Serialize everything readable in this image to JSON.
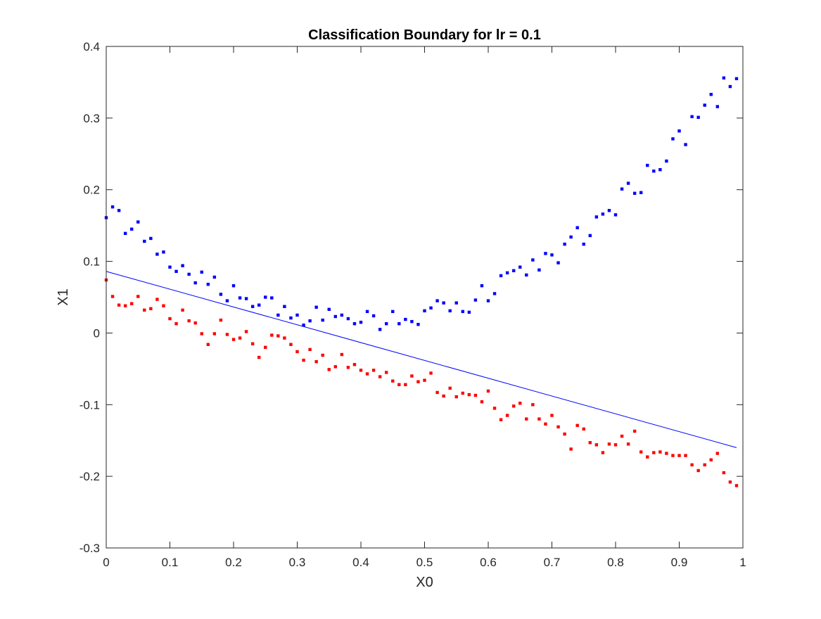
{
  "chart_data": {
    "type": "scatter",
    "title": "Classification Boundary for lr = 0.1",
    "xlabel": "X0",
    "ylabel": "X1",
    "xlim": [
      0,
      1
    ],
    "ylim": [
      -0.3,
      0.4
    ],
    "xticks": [
      "0",
      "0.1",
      "0.2",
      "0.3",
      "0.4",
      "0.5",
      "0.6",
      "0.7",
      "0.8",
      "0.9",
      "1"
    ],
    "yticks": [
      "-0.3",
      "-0.2",
      "-0.1",
      "0",
      "0.1",
      "0.2",
      "0.3",
      "0.4"
    ],
    "xtick_values": [
      0,
      0.1,
      0.2,
      0.3,
      0.4,
      0.5,
      0.6,
      0.7,
      0.8,
      0.9,
      1
    ],
    "ytick_values": [
      -0.3,
      -0.2,
      -0.1,
      0,
      0.1,
      0.2,
      0.3,
      0.4
    ],
    "grid": false,
    "box": true,
    "x": [
      0,
      0.01,
      0.02,
      0.03,
      0.04,
      0.05,
      0.06,
      0.07,
      0.08,
      0.09,
      0.1,
      0.11,
      0.12,
      0.13,
      0.14,
      0.15,
      0.16,
      0.17,
      0.18,
      0.19,
      0.2,
      0.21,
      0.22,
      0.23,
      0.24,
      0.25,
      0.26,
      0.27,
      0.28,
      0.29,
      0.3,
      0.31,
      0.32,
      0.33,
      0.34,
      0.35,
      0.36,
      0.37,
      0.38,
      0.39,
      0.4,
      0.41,
      0.42,
      0.43,
      0.44,
      0.45,
      0.46,
      0.47,
      0.48,
      0.49,
      0.5,
      0.51,
      0.52,
      0.53,
      0.54,
      0.55,
      0.56,
      0.57,
      0.58,
      0.59,
      0.6,
      0.61,
      0.62,
      0.63,
      0.64,
      0.65,
      0.66,
      0.67,
      0.68,
      0.69,
      0.7,
      0.71,
      0.72,
      0.73,
      0.74,
      0.75,
      0.76,
      0.77,
      0.78,
      0.79,
      0.8,
      0.81,
      0.82,
      0.83,
      0.84,
      0.85,
      0.86,
      0.87,
      0.88,
      0.89,
      0.9,
      0.91,
      0.92,
      0.93,
      0.94,
      0.95,
      0.96,
      0.97,
      0.98,
      0.99
    ],
    "series": [
      {
        "color": "#0000ff",
        "marker": "dot",
        "y": [
          0.161,
          0.176,
          0.171,
          0.139,
          0.145,
          0.155,
          0.128,
          0.132,
          0.11,
          0.113,
          0.092,
          0.086,
          0.094,
          0.082,
          0.07,
          0.085,
          0.068,
          0.078,
          0.054,
          0.045,
          0.066,
          0.049,
          0.048,
          0.037,
          0.039,
          0.05,
          0.049,
          0.025,
          0.037,
          0.021,
          0.025,
          0.011,
          0.017,
          0.036,
          0.018,
          0.033,
          0.023,
          0.025,
          0.02,
          0.013,
          0.015,
          0.03,
          0.024,
          0.005,
          0.013,
          0.03,
          0.013,
          0.019,
          0.016,
          0.012,
          0.031,
          0.035,
          0.045,
          0.042,
          0.031,
          0.042,
          0.03,
          0.029,
          0.046,
          0.066,
          0.045,
          0.055,
          0.08,
          0.084,
          0.087,
          0.092,
          0.081,
          0.102,
          0.088,
          0.111,
          0.109,
          0.098,
          0.124,
          0.134,
          0.147,
          0.124,
          0.136,
          0.162,
          0.166,
          0.171,
          0.165,
          0.201,
          0.209,
          0.195,
          0.196,
          0.234,
          0.226,
          0.228,
          0.24,
          0.271,
          0.282,
          0.263,
          0.302,
          0.301,
          0.318,
          0.333,
          0.316,
          0.356,
          0.344,
          0.355
        ]
      },
      {
        "color": "#ff0000",
        "marker": "dot",
        "y": [
          0.074,
          0.051,
          0.039,
          0.038,
          0.041,
          0.051,
          0.032,
          0.034,
          0.047,
          0.038,
          0.02,
          0.013,
          0.032,
          0.017,
          0.014,
          -0.001,
          -0.016,
          -0.001,
          0.018,
          -0.002,
          -0.009,
          -0.007,
          0.002,
          -0.015,
          -0.034,
          -0.02,
          -0.003,
          -0.004,
          -0.007,
          -0.016,
          -0.026,
          -0.038,
          -0.023,
          -0.04,
          -0.031,
          -0.051,
          -0.047,
          -0.03,
          -0.048,
          -0.044,
          -0.052,
          -0.057,
          -0.052,
          -0.061,
          -0.055,
          -0.067,
          -0.072,
          -0.072,
          -0.06,
          -0.068,
          -0.066,
          -0.056,
          -0.083,
          -0.088,
          -0.077,
          -0.089,
          -0.084,
          -0.086,
          -0.087,
          -0.096,
          -0.081,
          -0.105,
          -0.121,
          -0.115,
          -0.102,
          -0.098,
          -0.12,
          -0.1,
          -0.12,
          -0.127,
          -0.115,
          -0.131,
          -0.141,
          -0.162,
          -0.129,
          -0.134,
          -0.153,
          -0.156,
          -0.167,
          -0.155,
          -0.156,
          -0.144,
          -0.155,
          -0.137,
          -0.166,
          -0.173,
          -0.167,
          -0.166,
          -0.168,
          -0.171,
          -0.171,
          -0.171,
          -0.184,
          -0.192,
          -0.184,
          -0.177,
          -0.168,
          -0.195,
          -0.208,
          -0.213
        ]
      }
    ],
    "boundary_line": {
      "color": "#0000ff",
      "x": [
        0,
        0.99
      ],
      "y": [
        0.086,
        -0.16
      ]
    }
  }
}
